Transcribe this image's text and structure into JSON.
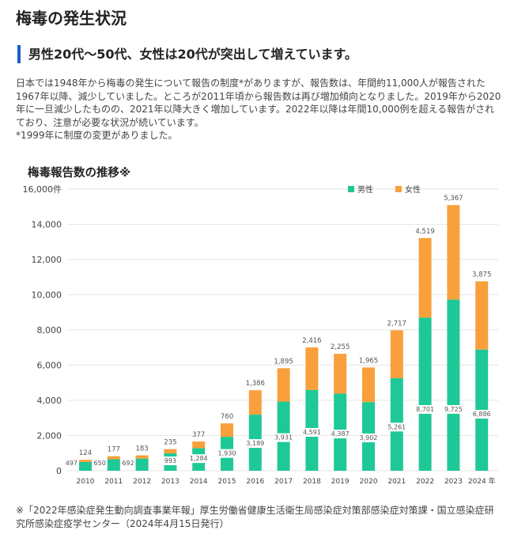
{
  "page": {
    "title": "梅毒の発生状況",
    "subheading": "男性20代〜50代、女性は20代が突出して増えています。",
    "paragraph": "日本では1948年から梅毒の発生について報告の制度*がありますが、報告数は、年間約11,000人が報告された1967年以降、減少していました。ところが2011年頃から報告数は再び増加傾向となりました。2019年から2020年に一旦減少したものの、2021年以降大きく増加しています。2022年以降は年間10,000例を超える報告がされており、注意が必要な状況が続いています。",
    "note": "*1999年に制度の変更がありました。",
    "footnote": "※「2022年感染症発生動向調査事業年報」厚生労働省健康生活衛生局感染症対策部感染症対策課・国立感染症研究所感染症疫学センター（2024年4月15日発行）"
  },
  "chart_data": {
    "type": "bar",
    "stacked": true,
    "title": "梅毒報告数の推移※",
    "categories": [
      "2010",
      "2011",
      "2012",
      "2013",
      "2014",
      "2015",
      "2016",
      "2017",
      "2018",
      "2019",
      "2020",
      "2021",
      "2022",
      "2023",
      "2024"
    ],
    "x_unit": "年",
    "y_unit": "件",
    "series": [
      {
        "name": "男性",
        "color": "#1ec997",
        "values": [
          497,
          650,
          692,
          993,
          1284,
          1930,
          3189,
          3931,
          4591,
          4387,
          3902,
          5261,
          8701,
          9725,
          6886
        ]
      },
      {
        "name": "女性",
        "color": "#f9a03c",
        "values": [
          124,
          177,
          183,
          235,
          377,
          760,
          1386,
          1895,
          2416,
          2255,
          1965,
          2717,
          4519,
          5367,
          3875
        ]
      }
    ],
    "yticks": [
      "0",
      "2,000",
      "4,000",
      "6,000",
      "8,000",
      "10,000",
      "12,000",
      "14,000",
      "16,000"
    ],
    "ylim": [
      0,
      16000
    ],
    "grid": true,
    "legend": "top-right"
  }
}
